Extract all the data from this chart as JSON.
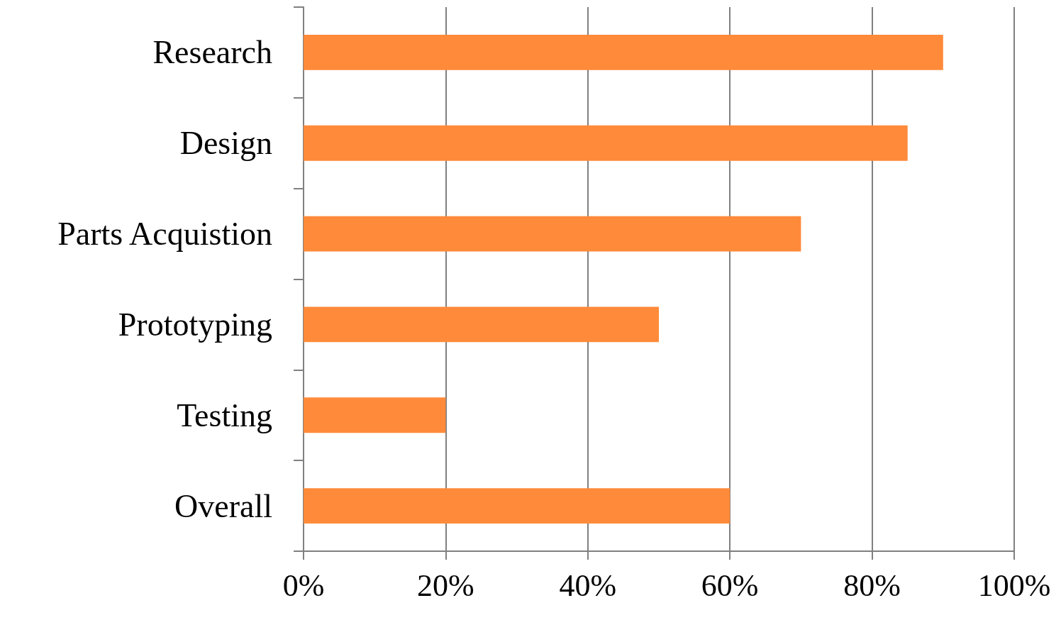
{
  "chart_data": {
    "type": "bar",
    "orientation": "horizontal",
    "categories": [
      "Research",
      "Design",
      "Parts Acquistion",
      "Prototyping",
      "Testing",
      "Overall"
    ],
    "values": [
      90,
      85,
      70,
      50,
      20,
      60
    ],
    "color": "#ff8a3a",
    "xlim": [
      0,
      100
    ],
    "xticks": [
      {
        "value": 0,
        "label": "0%"
      },
      {
        "value": 20,
        "label": "20%"
      },
      {
        "value": 40,
        "label": "40%"
      },
      {
        "value": 60,
        "label": "60%"
      },
      {
        "value": 80,
        "label": "80%"
      },
      {
        "value": 100,
        "label": "100%"
      }
    ],
    "grid": "x"
  }
}
